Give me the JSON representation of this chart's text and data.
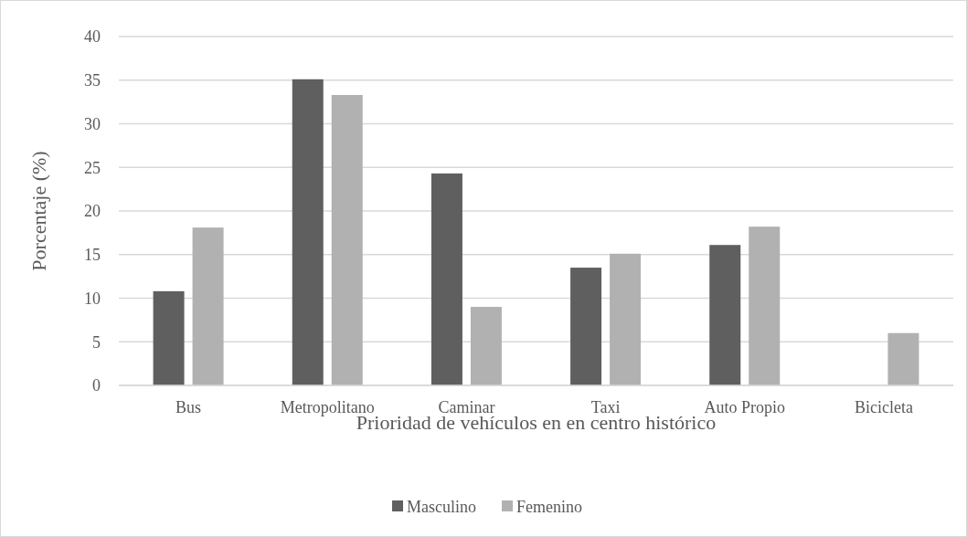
{
  "chart_data": {
    "type": "bar",
    "xlabel": "Prioridad de vehículos en en centro histórico",
    "ylabel": "Porcentaje (%)",
    "categories": [
      "Bus",
      "Metropolitano",
      "Caminar",
      "Taxi",
      "Auto Propio",
      "Bicicleta"
    ],
    "series": [
      {
        "name": "Masculino",
        "color": "#5f5f5f",
        "values": [
          10.8,
          35.1,
          24.3,
          13.5,
          16.1,
          0
        ]
      },
      {
        "name": "Femenino",
        "color": "#b1b1b1",
        "values": [
          18.1,
          33.3,
          9.0,
          15.1,
          18.2,
          6.0
        ]
      }
    ],
    "ylim": [
      0,
      40
    ],
    "yticks": [
      0,
      5,
      10,
      15,
      20,
      25,
      30,
      35,
      40
    ],
    "grid": "y",
    "legend": "bottom"
  }
}
